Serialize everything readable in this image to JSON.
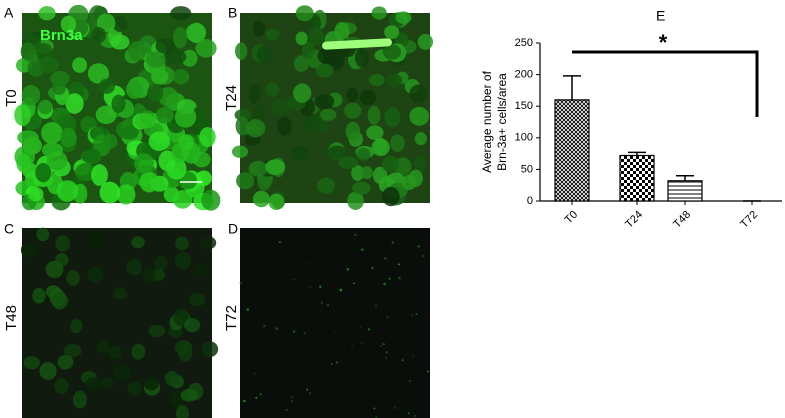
{
  "figure": {
    "stain_label": "Brn3a",
    "panels": [
      {
        "letter": "A",
        "label": "T0"
      },
      {
        "letter": "B",
        "label": "T24"
      },
      {
        "letter": "C",
        "label": "T48"
      },
      {
        "letter": "D",
        "label": "T72"
      }
    ]
  },
  "chart_data": {
    "type": "bar",
    "panel_letter": "E",
    "ylabel": [
      "Average number of",
      "Brn-3a+ cells/area"
    ],
    "categories": [
      "T0",
      "T24",
      "T48",
      "T72"
    ],
    "values": [
      160,
      72,
      32,
      0
    ],
    "errors": [
      38,
      5,
      8,
      0
    ],
    "color": "#000000",
    "ylim": [
      0,
      250
    ],
    "yticks": [
      0,
      50,
      100,
      150,
      200,
      250
    ],
    "annotation": "*"
  }
}
